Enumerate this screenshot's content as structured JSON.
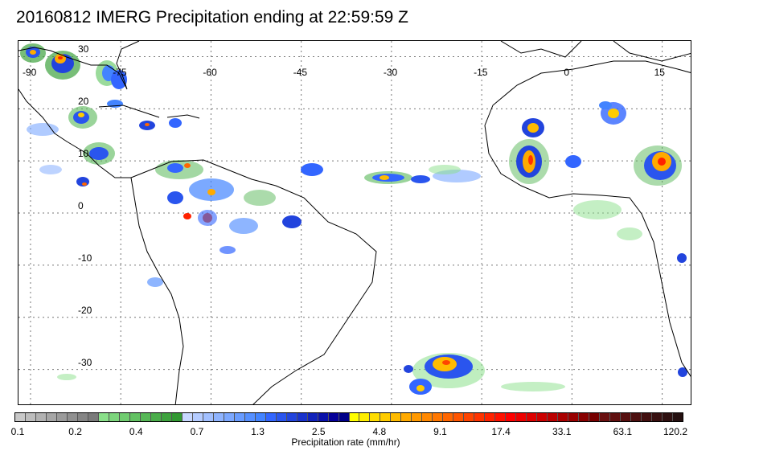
{
  "title": "20160812 IMERG Precipitation ending at 22:59:59 Z",
  "map": {
    "lon_labels": [
      "-90",
      "-75",
      "-60",
      "-45",
      "-30",
      "-15",
      "0",
      "15"
    ],
    "lat_labels": [
      "30",
      "20",
      "10",
      "0",
      "-10",
      "-20",
      "-30"
    ],
    "gridlines": "dotted",
    "lon_range": [
      -92,
      20
    ],
    "lat_range": [
      -37,
      33
    ]
  },
  "colorbar": {
    "label": "Precipitation rate (mm/hr)",
    "tick_labels": [
      "0.1",
      "0.2",
      "0.4",
      "0.7",
      "1.3",
      "2.5",
      "4.8",
      "9.1",
      "17.4",
      "33.1",
      "63.1",
      "120.2"
    ],
    "colors": [
      "#c8c8c8",
      "#bdbdbd",
      "#b2b2b2",
      "#a6a6a6",
      "#9b9b9b",
      "#909090",
      "#858585",
      "#7a7a7a",
      "#8ae08a",
      "#7dd67d",
      "#70cc70",
      "#63c263",
      "#57b857",
      "#4aad4a",
      "#3ea33e",
      "#329932",
      "#c8d8ff",
      "#b5ccff",
      "#a2c0ff",
      "#8fb4ff",
      "#7ca8ff",
      "#699cff",
      "#5690ff",
      "#4384ff",
      "#3366ff",
      "#2a55ee",
      "#2244dd",
      "#1a33cc",
      "#1122bb",
      "#0a11aa",
      "#050099",
      "#000088",
      "#ffff00",
      "#ffee00",
      "#ffdd00",
      "#ffcc00",
      "#ffbb00",
      "#ffaa00",
      "#ff9900",
      "#ff8800",
      "#ff7700",
      "#ff6600",
      "#ff5500",
      "#ff4400",
      "#ff3300",
      "#ff2200",
      "#ff1100",
      "#ff0000",
      "#ee0000",
      "#dd0000",
      "#cc0000",
      "#bb0000",
      "#aa0000",
      "#990000",
      "#880000",
      "#770000",
      "#6a1010",
      "#601010",
      "#561010",
      "#4c1010",
      "#421010",
      "#381010",
      "#2e1010",
      "#241010"
    ]
  }
}
